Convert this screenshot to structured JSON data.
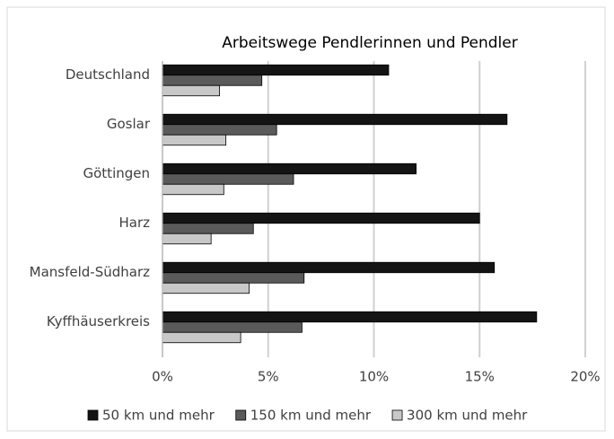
{
  "chart_data": {
    "type": "bar",
    "orientation": "horizontal",
    "title": "Arbeitswege Pendlerinnen und Pendler",
    "categories": [
      "Deutschland",
      "Goslar",
      "Göttingen",
      "Harz",
      "Mansfeld-Südharz",
      "Kyffhäuserkreis"
    ],
    "series": [
      {
        "name": "50 km und mehr",
        "color": "#141414",
        "values": [
          10.7,
          16.3,
          12.0,
          15.0,
          15.7,
          17.7
        ]
      },
      {
        "name": "150 km und mehr",
        "color": "#5a5a5a",
        "values": [
          4.7,
          5.4,
          6.2,
          4.3,
          6.7,
          6.6
        ]
      },
      {
        "name": "300 km und mehr",
        "color": "#c8c8c8",
        "values": [
          2.7,
          3.0,
          2.9,
          2.3,
          4.1,
          3.7
        ]
      }
    ],
    "xlim": [
      0,
      20
    ],
    "xticks": [
      {
        "value": 0,
        "label": "0%"
      },
      {
        "value": 5,
        "label": "5%"
      },
      {
        "value": 10,
        "label": "10%"
      },
      {
        "value": 15,
        "label": "15%"
      },
      {
        "value": 20,
        "label": "20%"
      }
    ],
    "grid": true,
    "legend": "bottom"
  }
}
